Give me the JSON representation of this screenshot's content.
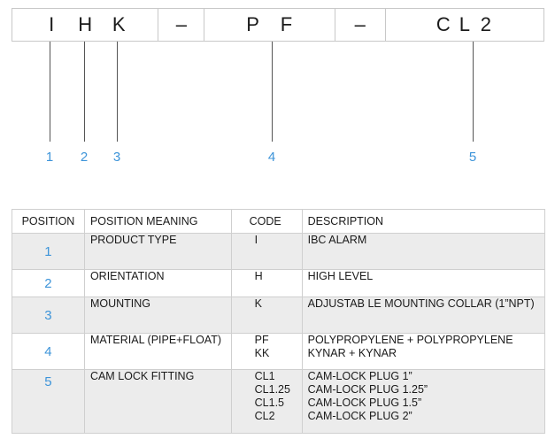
{
  "code_bar": {
    "segments": [
      {
        "chars": [
          "I",
          "H",
          "K"
        ]
      },
      {
        "chars": [
          "–"
        ]
      },
      {
        "chars": [
          "P",
          "F"
        ]
      },
      {
        "chars": [
          "–"
        ]
      },
      {
        "chars": [
          "C",
          "L",
          "2"
        ]
      }
    ]
  },
  "callouts": [
    "1",
    "2",
    "3",
    "4",
    "5"
  ],
  "colors": {
    "accent": "#3d94d9",
    "row_shade": "#ececec",
    "border": "#cfcfcf"
  },
  "table": {
    "headers": [
      "POSITION",
      "POSITION MEANING",
      "CODE",
      "DESCRIPTION"
    ],
    "rows": [
      {
        "position": "1",
        "meaning": "PRODUCT TYPE",
        "codes": [
          "I"
        ],
        "descriptions": [
          "IBC ALARM"
        ]
      },
      {
        "position": "2",
        "meaning": "ORIENTATION",
        "codes": [
          "H"
        ],
        "descriptions": [
          "HIGH LEVEL"
        ]
      },
      {
        "position": "3",
        "meaning": "MOUNTING",
        "codes": [
          "K"
        ],
        "descriptions": [
          "ADJUSTAB LE MOUNTING COLLAR (1”NPT)"
        ]
      },
      {
        "position": "4",
        "meaning": "MATERIAL (PIPE+FLOAT)",
        "codes": [
          "PF",
          "KK"
        ],
        "descriptions": [
          "POLYPROPYLENE + POLYPROPYLENE",
          "KYNAR + KYNAR"
        ]
      },
      {
        "position": "5",
        "meaning": "CAM LOCK FITTING",
        "codes": [
          "CL1",
          "CL1.25",
          "CL1.5",
          "CL2"
        ],
        "descriptions": [
          "CAM-LOCK PLUG 1”",
          "CAM-LOCK PLUG 1.25”",
          "CAM-LOCK PLUG 1.5”",
          "CAM-LOCK PLUG 2”"
        ]
      }
    ]
  }
}
